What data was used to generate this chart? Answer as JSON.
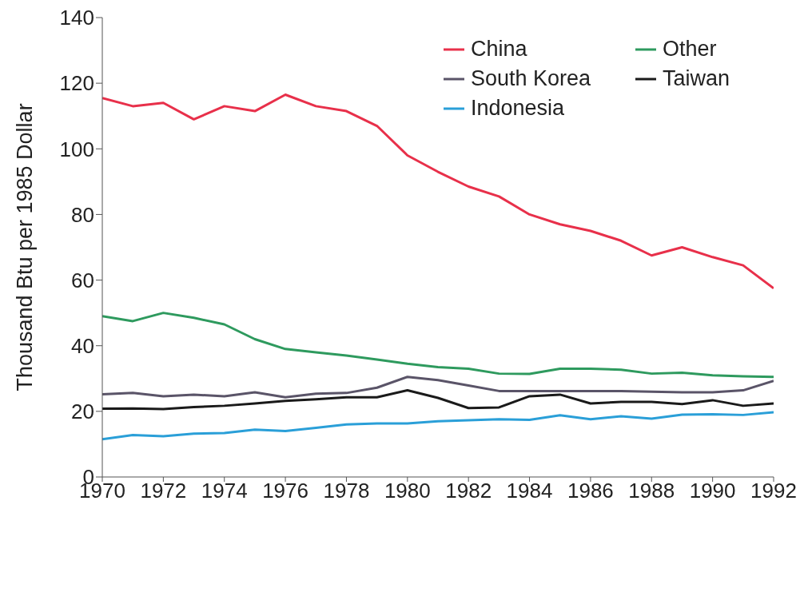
{
  "chart_data": {
    "type": "line",
    "ylabel": "Thousand Btu per 1985 Dollar",
    "x": [
      1970,
      1971,
      1972,
      1973,
      1974,
      1975,
      1976,
      1977,
      1978,
      1979,
      1980,
      1981,
      1982,
      1983,
      1984,
      1985,
      1986,
      1987,
      1988,
      1989,
      1990,
      1991,
      1992
    ],
    "series": [
      {
        "name": "China",
        "color": "#e8304a",
        "values": [
          115.5,
          113,
          114,
          109,
          113,
          111.5,
          116.5,
          113,
          111.5,
          107,
          98,
          93,
          88.5,
          85.5,
          80,
          77,
          75,
          72,
          67.5,
          70,
          67,
          64.5,
          57.5
        ]
      },
      {
        "name": "Other",
        "color": "#2e9a5e",
        "values": [
          49,
          47.5,
          50,
          48.5,
          46.5,
          42,
          39,
          38,
          37,
          35.8,
          34.5,
          33.5,
          33,
          31.5,
          31.4,
          33,
          33,
          32.7,
          31.5,
          31.8,
          31,
          30.7,
          30.5
        ]
      },
      {
        "name": "South Korea",
        "color": "#5a5468",
        "values": [
          25.2,
          25.6,
          24.6,
          25.1,
          24.6,
          25.8,
          24.3,
          25.4,
          25.6,
          27.2,
          30.5,
          29.5,
          27.9,
          26.2,
          26.2,
          26.2,
          26.2,
          26.2,
          26,
          25.8,
          25.8,
          26.4,
          29.3
        ]
      },
      {
        "name": "Taiwan",
        "color": "#1a1a1a",
        "values": [
          20.8,
          20.9,
          20.7,
          21.3,
          21.7,
          22.4,
          23.2,
          23.7,
          24.3,
          24.3,
          26.4,
          24.1,
          21,
          21.2,
          24.6,
          25.1,
          22.4,
          22.9,
          22.9,
          22.2,
          23.4,
          21.7,
          22.4
        ]
      },
      {
        "name": "Indonesia",
        "color": "#2a9fd8",
        "values": [
          11.5,
          12.8,
          12.4,
          13.2,
          13.4,
          14.4,
          14,
          15,
          16,
          16.3,
          16.3,
          17,
          17.3,
          17.6,
          17.4,
          18.8,
          17.6,
          18.5,
          17.8,
          19,
          19.1,
          18.9,
          19.7
        ]
      }
    ],
    "xlim": [
      1970,
      1992
    ],
    "xticks": [
      1970,
      1972,
      1974,
      1976,
      1978,
      1980,
      1982,
      1984,
      1986,
      1988,
      1990,
      1992
    ],
    "ylim": [
      0,
      140
    ],
    "yticks": [
      0,
      20,
      40,
      60,
      80,
      100,
      120,
      140
    ],
    "grid": false,
    "legend": "top right",
    "marker": "none",
    "line_style": "solid"
  }
}
